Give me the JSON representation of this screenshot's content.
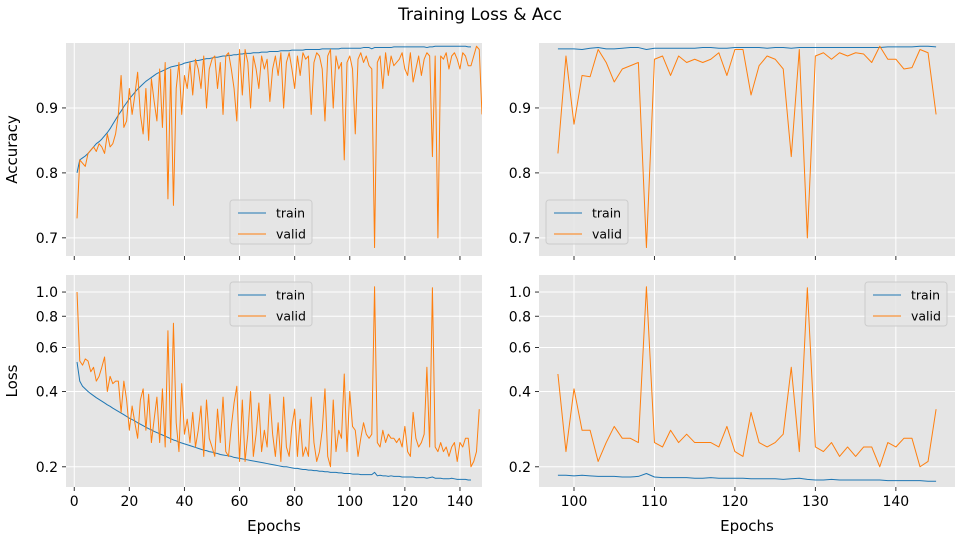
{
  "title": "Training Loss & Acc",
  "colors": {
    "train": "#1f77b4",
    "valid": "#ff7f0e",
    "panel_bg": "#e5e5e5",
    "grid": "#ffffff"
  },
  "chart_data": [
    {
      "id": "acc_full",
      "type": "line",
      "title": "",
      "xlabel": "",
      "ylabel": "Accuracy",
      "yscale": "linear",
      "xlim": [
        -3,
        148
      ],
      "ylim": [
        0.672,
        1.0
      ],
      "xticks": [
        0,
        20,
        40,
        60,
        80,
        100,
        120,
        140
      ],
      "xtick_labels": [],
      "yticks": [
        0.7,
        0.8,
        0.9
      ],
      "ytick_labels": [
        "0.7",
        "0.8",
        "0.9"
      ],
      "legend": {
        "loc": "lower center",
        "entries": [
          "train",
          "valid"
        ]
      },
      "x_start": 1,
      "series": [
        {
          "name": "train",
          "values": [
            0.8,
            0.82,
            0.823,
            0.826,
            0.83,
            0.835,
            0.84,
            0.845,
            0.848,
            0.852,
            0.857,
            0.862,
            0.868,
            0.875,
            0.882,
            0.889,
            0.895,
            0.902,
            0.908,
            0.914,
            0.919,
            0.924,
            0.929,
            0.933,
            0.937,
            0.941,
            0.944,
            0.947,
            0.95,
            0.953,
            0.955,
            0.957,
            0.959,
            0.961,
            0.963,
            0.964,
            0.965,
            0.966,
            0.967,
            0.969,
            0.97,
            0.971,
            0.972,
            0.973,
            0.973,
            0.974,
            0.975,
            0.976,
            0.976,
            0.977,
            0.978,
            0.978,
            0.979,
            0.98,
            0.98,
            0.981,
            0.981,
            0.982,
            0.982,
            0.983,
            0.983,
            0.984,
            0.984,
            0.984,
            0.985,
            0.985,
            0.985,
            0.986,
            0.986,
            0.986,
            0.987,
            0.987,
            0.987,
            0.987,
            0.988,
            0.988,
            0.988,
            0.988,
            0.989,
            0.989,
            0.989,
            0.989,
            0.989,
            0.99,
            0.99,
            0.99,
            0.99,
            0.99,
            0.99,
            0.991,
            0.991,
            0.991,
            0.991,
            0.991,
            0.991,
            0.991,
            0.992,
            0.992,
            0.992,
            0.992,
            0.992,
            0.992,
            0.992,
            0.992,
            0.993,
            0.993,
            0.993,
            0.991,
            0.993,
            0.993,
            0.993,
            0.993,
            0.993,
            0.993,
            0.993,
            0.994,
            0.994,
            0.994,
            0.994,
            0.994,
            0.994,
            0.994,
            0.994,
            0.994,
            0.994,
            0.994,
            0.994,
            0.993,
            0.994,
            0.994,
            0.995,
            0.995,
            0.995,
            0.995,
            0.995,
            0.995,
            0.995,
            0.995,
            0.995,
            0.995,
            0.995,
            0.995,
            0.994,
            0.994
          ]
        },
        {
          "name": "valid",
          "values": [
            0.73,
            0.82,
            0.815,
            0.81,
            0.83,
            0.835,
            0.84,
            0.833,
            0.845,
            0.84,
            0.83,
            0.86,
            0.84,
            0.845,
            0.86,
            0.89,
            0.95,
            0.87,
            0.88,
            0.93,
            0.89,
            0.92,
            0.955,
            0.89,
            0.86,
            0.93,
            0.85,
            0.945,
            0.91,
            0.88,
            0.96,
            0.87,
            0.97,
            0.76,
            0.96,
            0.75,
            0.93,
            0.97,
            0.89,
            0.95,
            0.93,
            0.97,
            0.92,
            0.975,
            0.96,
            0.93,
            0.98,
            0.9,
            0.96,
            0.975,
            0.98,
            0.93,
            0.97,
            0.89,
            0.98,
            0.985,
            0.96,
            0.93,
            0.88,
            0.99,
            0.92,
            0.99,
            0.97,
            0.9,
            0.98,
            0.96,
            0.93,
            0.98,
            0.96,
            0.975,
            0.91,
            0.96,
            0.98,
            0.95,
            0.985,
            0.9,
            0.97,
            0.985,
            0.96,
            0.93,
            0.98,
            0.95,
            0.985,
            0.975,
            0.98,
            0.89,
            0.97,
            0.985,
            0.98,
            0.96,
            0.88,
            0.98,
            0.99,
            0.9,
            0.98,
            0.96,
            0.97,
            0.82,
            0.97,
            0.98,
            0.96,
            0.86,
            0.975,
            0.985,
            0.97,
            0.98,
            0.965,
            0.96,
            0.685,
            0.97,
            0.98,
            0.93,
            0.985,
            0.95,
            0.98,
            0.965,
            0.97,
            0.975,
            0.985,
            0.96,
            0.95,
            0.985,
            0.94,
            0.96,
            0.98,
            0.95,
            0.975,
            0.985,
            0.98,
            0.825,
            0.98,
            0.7,
            0.98,
            0.975,
            0.985,
            0.96,
            0.98,
            0.985,
            0.975,
            0.96,
            0.985,
            0.98,
            0.965,
            0.965,
            0.98,
            0.995,
            0.99,
            0.89
          ]
        }
      ]
    },
    {
      "id": "acc_zoom",
      "type": "line",
      "title": "",
      "xlabel": "",
      "ylabel": "",
      "yscale": "linear",
      "xlim": [
        95.65,
        147.35
      ],
      "ylim": [
        0.672,
        1.0
      ],
      "xticks": [
        100,
        110,
        120,
        130,
        140
      ],
      "xtick_labels": [],
      "yticks": [
        0.7,
        0.8,
        0.9
      ],
      "ytick_labels": [
        "0.7",
        "0.8",
        "0.9"
      ],
      "legend": {
        "loc": "lower left",
        "entries": [
          "train",
          "valid"
        ]
      },
      "x_start": 98,
      "series": [
        {
          "name": "train",
          "values": [
            0.991,
            0.991,
            0.991,
            0.99,
            0.992,
            0.993,
            0.991,
            0.991,
            0.992,
            0.993,
            0.993,
            0.99,
            0.992,
            0.992,
            0.992,
            0.992,
            0.992,
            0.992,
            0.993,
            0.993,
            0.992,
            0.992,
            0.993,
            0.993,
            0.993,
            0.993,
            0.992,
            0.993,
            0.993,
            0.992,
            0.993,
            0.993,
            0.993,
            0.993,
            0.993,
            0.993,
            0.993,
            0.993,
            0.993,
            0.993,
            0.993,
            0.994,
            0.994,
            0.994,
            0.994,
            0.995,
            0.995,
            0.994
          ]
        },
        {
          "name": "valid",
          "values": [
            0.83,
            0.98,
            0.875,
            0.95,
            0.948,
            0.99,
            0.97,
            0.94,
            0.96,
            0.965,
            0.97,
            0.685,
            0.975,
            0.98,
            0.95,
            0.98,
            0.97,
            0.975,
            0.97,
            0.975,
            0.985,
            0.95,
            0.99,
            0.99,
            0.92,
            0.965,
            0.98,
            0.975,
            0.96,
            0.825,
            0.99,
            0.7,
            0.98,
            0.985,
            0.975,
            0.985,
            0.98,
            0.985,
            0.983,
            0.97,
            0.995,
            0.975,
            0.975,
            0.96,
            0.962,
            0.99,
            0.985,
            0.89
          ]
        }
      ]
    },
    {
      "id": "loss_full",
      "type": "line",
      "title": "",
      "xlabel": "Epochs",
      "ylabel": "Loss",
      "yscale": "log",
      "xlim": [
        -3,
        148
      ],
      "ylim": [
        0.166,
        1.17
      ],
      "xticks": [
        0,
        20,
        40,
        60,
        80,
        100,
        120,
        140
      ],
      "xtick_labels": [
        "0",
        "20",
        "40",
        "60",
        "80",
        "100",
        "120",
        "140"
      ],
      "yticks": [
        0.2,
        0.4,
        0.6,
        0.8,
        1.0
      ],
      "ytick_labels": [
        "0.2",
        "0.4",
        "0.6",
        "0.8",
        "1.0"
      ],
      "legend": {
        "loc": "upper center",
        "entries": [
          "train",
          "valid"
        ]
      },
      "x_start": 1,
      "series": [
        {
          "name": "train",
          "values": [
            0.525,
            0.44,
            0.42,
            0.41,
            0.4,
            0.392,
            0.385,
            0.378,
            0.372,
            0.366,
            0.36,
            0.354,
            0.349,
            0.343,
            0.338,
            0.333,
            0.328,
            0.323,
            0.318,
            0.313,
            0.309,
            0.305,
            0.3,
            0.296,
            0.292,
            0.288,
            0.284,
            0.281,
            0.277,
            0.274,
            0.271,
            0.268,
            0.265,
            0.262,
            0.259,
            0.256,
            0.254,
            0.251,
            0.249,
            0.247,
            0.245,
            0.243,
            0.241,
            0.239,
            0.237,
            0.235,
            0.233,
            0.232,
            0.23,
            0.229,
            0.227,
            0.226,
            0.224,
            0.223,
            0.222,
            0.221,
            0.22,
            0.218,
            0.217,
            0.216,
            0.215,
            0.214,
            0.213,
            0.212,
            0.211,
            0.21,
            0.209,
            0.208,
            0.207,
            0.206,
            0.205,
            0.204,
            0.203,
            0.202,
            0.201,
            0.2,
            0.2,
            0.199,
            0.198,
            0.197,
            0.197,
            0.196,
            0.195,
            0.195,
            0.194,
            0.194,
            0.193,
            0.193,
            0.192,
            0.192,
            0.191,
            0.191,
            0.19,
            0.19,
            0.19,
            0.189,
            0.189,
            0.188,
            0.188,
            0.188,
            0.187,
            0.187,
            0.187,
            0.186,
            0.186,
            0.186,
            0.186,
            0.186,
            0.19,
            0.184,
            0.185,
            0.184,
            0.184,
            0.183,
            0.184,
            0.183,
            0.183,
            0.183,
            0.182,
            0.182,
            0.182,
            0.182,
            0.182,
            0.181,
            0.181,
            0.181,
            0.181,
            0.18,
            0.181,
            0.182,
            0.18,
            0.18,
            0.18,
            0.179,
            0.179,
            0.179,
            0.18,
            0.179,
            0.178,
            0.178,
            0.178,
            0.178,
            0.177,
            0.177
          ]
        },
        {
          "name": "valid",
          "values": [
            1.0,
            0.53,
            0.51,
            0.54,
            0.53,
            0.48,
            0.5,
            0.44,
            0.46,
            0.5,
            0.55,
            0.4,
            0.46,
            0.43,
            0.44,
            0.44,
            0.33,
            0.44,
            0.37,
            0.28,
            0.35,
            0.3,
            0.26,
            0.37,
            0.41,
            0.28,
            0.39,
            0.25,
            0.31,
            0.38,
            0.25,
            0.41,
            0.24,
            0.7,
            0.25,
            0.75,
            0.3,
            0.23,
            0.43,
            0.27,
            0.31,
            0.25,
            0.33,
            0.24,
            0.28,
            0.35,
            0.22,
            0.37,
            0.26,
            0.24,
            0.22,
            0.34,
            0.25,
            0.38,
            0.23,
            0.22,
            0.29,
            0.36,
            0.42,
            0.21,
            0.37,
            0.21,
            0.27,
            0.4,
            0.22,
            0.27,
            0.36,
            0.23,
            0.28,
            0.24,
            0.39,
            0.27,
            0.22,
            0.3,
            0.21,
            0.38,
            0.24,
            0.22,
            0.29,
            0.34,
            0.22,
            0.31,
            0.22,
            0.24,
            0.22,
            0.38,
            0.25,
            0.21,
            0.23,
            0.28,
            0.41,
            0.22,
            0.2,
            0.37,
            0.23,
            0.28,
            0.26,
            0.47,
            0.23,
            0.4,
            0.29,
            0.28,
            0.22,
            0.26,
            0.3,
            0.27,
            0.26,
            0.27,
            1.05,
            0.25,
            0.24,
            0.28,
            0.25,
            0.27,
            0.26,
            0.26,
            0.25,
            0.26,
            0.24,
            0.29,
            0.23,
            0.22,
            0.33,
            0.26,
            0.24,
            0.25,
            0.27,
            0.5,
            0.24,
            1.04,
            0.24,
            0.23,
            0.25,
            0.23,
            0.24,
            0.22,
            0.24,
            0.25,
            0.21,
            0.25,
            0.24,
            0.26,
            0.26,
            0.2,
            0.21,
            0.23,
            0.34
          ]
        }
      ]
    },
    {
      "id": "loss_zoom",
      "type": "line",
      "title": "",
      "xlabel": "Epochs",
      "ylabel": "",
      "yscale": "log",
      "xlim": [
        95.65,
        147.35
      ],
      "ylim": [
        0.166,
        1.17
      ],
      "xticks": [
        100,
        110,
        120,
        130,
        140
      ],
      "xtick_labels": [
        "100",
        "110",
        "120",
        "130",
        "140"
      ],
      "yticks": [
        0.2,
        0.4,
        0.6,
        0.8,
        1.0
      ],
      "ytick_labels": [
        "0.2",
        "0.4",
        "0.6",
        "0.8",
        "1.0"
      ],
      "legend": {
        "loc": "upper right",
        "entries": [
          "train",
          "valid"
        ]
      },
      "x_start": 98,
      "series": [
        {
          "name": "train",
          "values": [
            0.185,
            0.185,
            0.184,
            0.185,
            0.184,
            0.183,
            0.183,
            0.183,
            0.182,
            0.182,
            0.183,
            0.188,
            0.182,
            0.181,
            0.181,
            0.181,
            0.181,
            0.18,
            0.18,
            0.181,
            0.18,
            0.18,
            0.18,
            0.18,
            0.179,
            0.179,
            0.179,
            0.179,
            0.178,
            0.179,
            0.18,
            0.178,
            0.177,
            0.177,
            0.178,
            0.177,
            0.177,
            0.177,
            0.177,
            0.177,
            0.177,
            0.176,
            0.176,
            0.176,
            0.176,
            0.176,
            0.175,
            0.175
          ]
        },
        {
          "name": "valid",
          "values": [
            0.47,
            0.23,
            0.41,
            0.28,
            0.28,
            0.21,
            0.25,
            0.29,
            0.26,
            0.26,
            0.25,
            1.05,
            0.25,
            0.24,
            0.28,
            0.25,
            0.27,
            0.25,
            0.25,
            0.25,
            0.24,
            0.29,
            0.23,
            0.22,
            0.33,
            0.25,
            0.24,
            0.25,
            0.27,
            0.5,
            0.23,
            1.04,
            0.24,
            0.23,
            0.25,
            0.22,
            0.24,
            0.22,
            0.24,
            0.24,
            0.2,
            0.25,
            0.24,
            0.26,
            0.26,
            0.2,
            0.21,
            0.34
          ]
        }
      ]
    }
  ]
}
